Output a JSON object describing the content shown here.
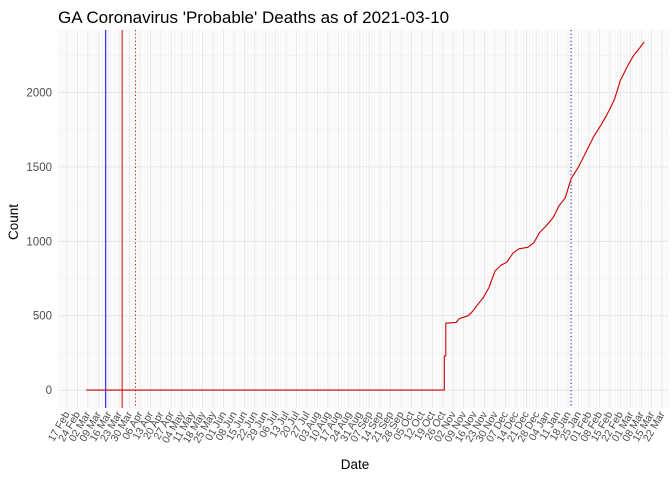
{
  "chart_data": {
    "type": "line",
    "title": "GA Coronavirus 'Probable' Deaths as of 2021-03-10",
    "xlabel": "Date",
    "ylabel": "Count",
    "x_is_date": true,
    "xlim": [
      "2020-02-11",
      "2021-03-26"
    ],
    "ylim": [
      -120,
      2420
    ],
    "yticks": [
      0,
      500,
      1000,
      1500,
      2000
    ],
    "xticks": [
      {
        "date": "2020-02-17",
        "label": "17 Feb"
      },
      {
        "date": "2020-02-24",
        "label": "24 Feb"
      },
      {
        "date": "2020-03-02",
        "label": "02 Mar"
      },
      {
        "date": "2020-03-09",
        "label": "09 Mar"
      },
      {
        "date": "2020-03-16",
        "label": "16 Mar"
      },
      {
        "date": "2020-03-23",
        "label": "23 Mar"
      },
      {
        "date": "2020-03-30",
        "label": "30 Mar"
      },
      {
        "date": "2020-04-06",
        "label": "06 Apr"
      },
      {
        "date": "2020-04-13",
        "label": "13 Apr"
      },
      {
        "date": "2020-04-20",
        "label": "20 Apr"
      },
      {
        "date": "2020-04-27",
        "label": "27 Apr"
      },
      {
        "date": "2020-05-04",
        "label": "04 May"
      },
      {
        "date": "2020-05-11",
        "label": "11 May"
      },
      {
        "date": "2020-05-18",
        "label": "18 May"
      },
      {
        "date": "2020-05-25",
        "label": "25 May"
      },
      {
        "date": "2020-06-01",
        "label": "01 Jun"
      },
      {
        "date": "2020-06-08",
        "label": "08 Jun"
      },
      {
        "date": "2020-06-15",
        "label": "15 Jun"
      },
      {
        "date": "2020-06-22",
        "label": "22 Jun"
      },
      {
        "date": "2020-06-29",
        "label": "29 Jun"
      },
      {
        "date": "2020-07-06",
        "label": "06 Jul"
      },
      {
        "date": "2020-07-13",
        "label": "13 Jul"
      },
      {
        "date": "2020-07-20",
        "label": "20 Jul"
      },
      {
        "date": "2020-07-27",
        "label": "27 Jul"
      },
      {
        "date": "2020-08-03",
        "label": "03 Aug"
      },
      {
        "date": "2020-08-10",
        "label": "10 Aug"
      },
      {
        "date": "2020-08-17",
        "label": "17 Aug"
      },
      {
        "date": "2020-08-24",
        "label": "24 Aug"
      },
      {
        "date": "2020-08-31",
        "label": "31 Aug"
      },
      {
        "date": "2020-09-07",
        "label": "07 Sep"
      },
      {
        "date": "2020-09-14",
        "label": "14 Sep"
      },
      {
        "date": "2020-09-21",
        "label": "21 Sep"
      },
      {
        "date": "2020-09-28",
        "label": "28 Sep"
      },
      {
        "date": "2020-10-05",
        "label": "05 Oct"
      },
      {
        "date": "2020-10-12",
        "label": "12 Oct"
      },
      {
        "date": "2020-10-19",
        "label": "19 Oct"
      },
      {
        "date": "2020-10-26",
        "label": "26 Oct"
      },
      {
        "date": "2020-11-02",
        "label": "02 Nov"
      },
      {
        "date": "2020-11-09",
        "label": "09 Nov"
      },
      {
        "date": "2020-11-16",
        "label": "16 Nov"
      },
      {
        "date": "2020-11-23",
        "label": "23 Nov"
      },
      {
        "date": "2020-11-30",
        "label": "30 Nov"
      },
      {
        "date": "2020-12-07",
        "label": "07 Dec"
      },
      {
        "date": "2020-12-14",
        "label": "14 Dec"
      },
      {
        "date": "2020-12-21",
        "label": "21 Dec"
      },
      {
        "date": "2020-12-28",
        "label": "28 Dec"
      },
      {
        "date": "2021-01-04",
        "label": "04 Jan"
      },
      {
        "date": "2021-01-11",
        "label": "11 Jan"
      },
      {
        "date": "2021-01-18",
        "label": "18 Jan"
      },
      {
        "date": "2021-01-25",
        "label": "25 Jan"
      },
      {
        "date": "2021-02-01",
        "label": "01 Feb"
      },
      {
        "date": "2021-02-08",
        "label": "08 Feb"
      },
      {
        "date": "2021-02-15",
        "label": "15 Feb"
      },
      {
        "date": "2021-02-22",
        "label": "22 Feb"
      },
      {
        "date": "2021-03-01",
        "label": "01 Mar"
      },
      {
        "date": "2021-03-08",
        "label": "08 Mar"
      },
      {
        "date": "2021-03-15",
        "label": "15 Mar"
      },
      {
        "date": "2021-03-22",
        "label": "22 Mar"
      }
    ],
    "grid": true,
    "legend": "none",
    "series": [
      {
        "color": "#cc0000",
        "x": [
          "2020-03-01",
          "2020-10-27",
          "2020-10-27",
          "2020-10-28",
          "2020-10-28",
          "2020-11-04",
          "2020-11-06",
          "2020-11-12",
          "2020-11-15",
          "2020-11-18",
          "2020-11-22",
          "2020-11-26",
          "2020-11-30",
          "2020-12-04",
          "2020-12-08",
          "2020-12-12",
          "2020-12-16",
          "2020-12-22",
          "2020-12-26",
          "2020-12-30",
          "2021-01-03",
          "2021-01-08",
          "2021-01-12",
          "2021-01-16",
          "2021-01-20",
          "2021-01-25",
          "2021-01-30",
          "2021-02-04",
          "2021-02-09",
          "2021-02-13",
          "2021-02-18",
          "2021-02-22",
          "2021-02-27",
          "2021-03-03",
          "2021-03-07",
          "2021-03-10"
        ],
        "y": [
          0,
          0,
          230,
          230,
          450,
          455,
          480,
          500,
          530,
          570,
          620,
          690,
          800,
          840,
          860,
          920,
          950,
          960,
          990,
          1060,
          1100,
          1160,
          1240,
          1290,
          1420,
          1500,
          1600,
          1700,
          1780,
          1850,
          1950,
          2080,
          2180,
          2250,
          2300,
          2340
        ]
      }
    ],
    "vlines": [
      {
        "date": "2020-03-14",
        "color": "#0000ff",
        "style": "solid"
      },
      {
        "date": "2020-03-25",
        "color": "#cc0000",
        "style": "solid"
      },
      {
        "date": "2020-04-03",
        "color": "#cc0000",
        "style": "dotted"
      },
      {
        "date": "2021-01-20",
        "color": "#0000cc",
        "style": "dotted"
      }
    ]
  }
}
